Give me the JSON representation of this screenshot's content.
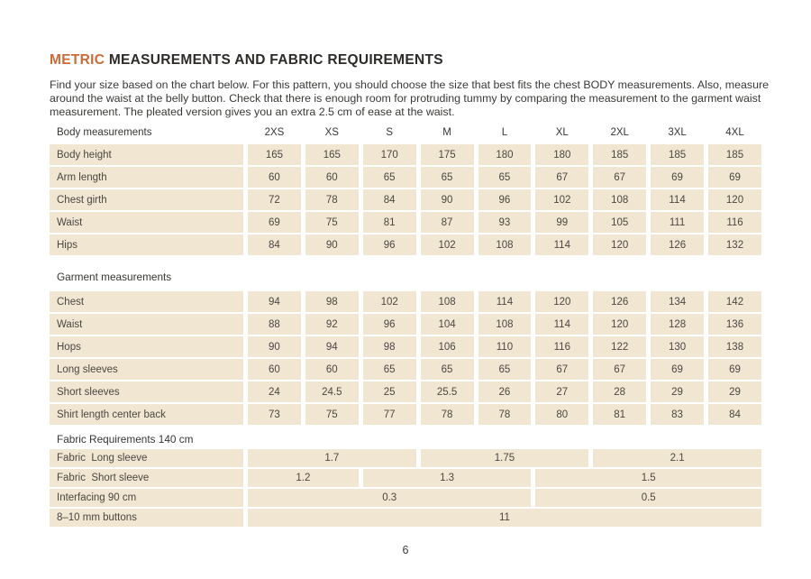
{
  "header": {
    "title_highlight": "METRIC",
    "title_rest": "MEASUREMENTS AND FABRIC REQUIREMENTS",
    "intro": "Find your size based on the chart below. For this pattern, you should choose the size that best fits the chest BODY measurements. Also, measure around the waist at the belly button. Check that there is enough room for protruding tummy by comparing the measurement to the garment waist measurement. The pleated version gives you an extra 2.5 cm of ease at the waist."
  },
  "colors": {
    "accent": "#cc6a35",
    "cell_background": "#f0e6d2",
    "text": "#3b3936"
  },
  "table": {
    "columns_label": "Body measurements",
    "sizes": [
      "2XS",
      "XS",
      "S",
      "M",
      "L",
      "XL",
      "2XL",
      "3XL",
      "4XL"
    ],
    "body_rows": [
      {
        "label": "Body height",
        "values": [
          165,
          165,
          170,
          175,
          180,
          180,
          185,
          185,
          185
        ]
      },
      {
        "label": "Arm length",
        "values": [
          60,
          60,
          65,
          65,
          65,
          67,
          67,
          69,
          69
        ]
      },
      {
        "label": "Chest girth",
        "values": [
          72,
          78,
          84,
          90,
          96,
          102,
          108,
          114,
          120
        ]
      },
      {
        "label": "Waist",
        "values": [
          69,
          75,
          81,
          87,
          93,
          99,
          105,
          111,
          116
        ]
      },
      {
        "label": "Hips",
        "values": [
          84,
          90,
          96,
          102,
          108,
          114,
          120,
          126,
          132
        ]
      }
    ],
    "garment_section_label": "Garment measurements",
    "garment_rows": [
      {
        "label": "Chest",
        "values": [
          94,
          98,
          102,
          108,
          114,
          120,
          126,
          134,
          142
        ]
      },
      {
        "label": "Waist",
        "values": [
          88,
          92,
          96,
          104,
          108,
          114,
          120,
          128,
          136
        ]
      },
      {
        "label": "Hops",
        "values": [
          90,
          94,
          98,
          106,
          110,
          116,
          122,
          130,
          138
        ]
      },
      {
        "label": "Long sleeves",
        "values": [
          60,
          60,
          65,
          65,
          65,
          67,
          67,
          69,
          69
        ]
      },
      {
        "label": "Short sleeves",
        "values": [
          24,
          24.5,
          25,
          25.5,
          26,
          27,
          28,
          29,
          29
        ]
      },
      {
        "label": "Shirt length center back",
        "values": [
          73,
          75,
          77,
          78,
          78,
          80,
          81,
          83,
          84
        ]
      }
    ],
    "fabric_section_label": "Fabric Requirements 140 cm",
    "fabric_rows": [
      {
        "label": "Fabric  Long sleeve",
        "cells": [
          {
            "value": "1.7",
            "span": 3
          },
          {
            "value": "1.75",
            "span": 3
          },
          {
            "value": "2.1",
            "span": 3
          }
        ]
      },
      {
        "label": "Fabric  Short sleeve",
        "cells": [
          {
            "value": "1.2",
            "span": 2
          },
          {
            "value": "1.3",
            "span": 3
          },
          {
            "value": "1.5",
            "span": 4
          }
        ]
      },
      {
        "label": "Interfacing 90 cm",
        "cells": [
          {
            "value": "0.3",
            "span": 5
          },
          {
            "value": "0.5",
            "span": 4
          }
        ]
      },
      {
        "label": "8–10 mm buttons",
        "cells": [
          {
            "value": "11",
            "span": 9
          }
        ]
      }
    ]
  },
  "footer": {
    "page_number": "6"
  }
}
